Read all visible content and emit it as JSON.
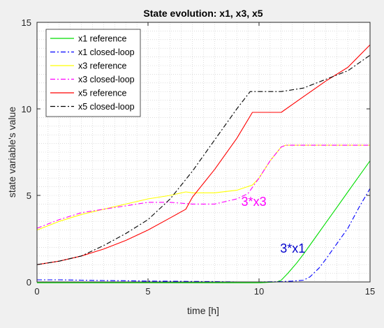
{
  "chart_data": {
    "type": "line",
    "title": "State evolution: x1, x3, x5",
    "xlabel": "time [h]",
    "ylabel": "state variable's value",
    "xlim": [
      0,
      15
    ],
    "ylim": [
      0,
      15
    ],
    "xticks": [
      0,
      5,
      10,
      15
    ],
    "yticks": [
      0,
      5,
      10,
      15
    ],
    "grid": "minor dotted",
    "legend_position": "top-left",
    "series": [
      {
        "name": "x1 reference",
        "color": "#00dd00",
        "style": "solid",
        "x": [
          0,
          1,
          2,
          3,
          4,
          5,
          6,
          7,
          8,
          9,
          10,
          10.8,
          11,
          11.3,
          11.7,
          12,
          12.5,
          13,
          13.5,
          14,
          14.5,
          15
        ],
        "y": [
          -0.05,
          -0.05,
          -0.05,
          -0.05,
          -0.05,
          -0.05,
          -0.05,
          -0.05,
          -0.05,
          -0.05,
          -0.05,
          0.0,
          0.1,
          0.5,
          1.1,
          1.6,
          2.5,
          3.4,
          4.3,
          5.2,
          6.1,
          7.0
        ]
      },
      {
        "name": "x1 closed-loop",
        "color": "#0000ff",
        "style": "dashdot",
        "x": [
          0,
          1,
          2,
          3,
          4,
          5,
          6,
          7,
          8,
          9,
          10,
          11,
          11.5,
          12,
          12.3,
          12.7,
          13,
          13.5,
          14,
          14.5,
          15
        ],
        "y": [
          0.12,
          0.12,
          0.1,
          0.08,
          0.07,
          0.05,
          0.04,
          0.03,
          0.02,
          0.0,
          0.0,
          0.02,
          0.05,
          0.1,
          0.3,
          0.8,
          1.3,
          2.2,
          3.1,
          4.3,
          5.4
        ]
      },
      {
        "name": "x3 reference",
        "color": "#ffff00",
        "style": "solid",
        "x": [
          0,
          1,
          2,
          3,
          4,
          5,
          6,
          6.7,
          7,
          8,
          9,
          9.7,
          10,
          10.5,
          11,
          11.2,
          12,
          13,
          14,
          15
        ],
        "y": [
          3.0,
          3.5,
          3.9,
          4.2,
          4.5,
          4.8,
          5.0,
          5.2,
          5.15,
          5.15,
          5.3,
          5.6,
          6.0,
          7.0,
          7.8,
          7.9,
          7.9,
          7.9,
          7.9,
          7.9
        ]
      },
      {
        "name": "x3 closed-loop",
        "color": "#ff00ff",
        "style": "dashdot",
        "x": [
          0,
          1,
          2,
          3,
          4,
          5,
          6,
          7,
          8,
          9,
          9.5,
          10,
          10.5,
          11,
          11.2,
          12,
          13,
          14,
          15
        ],
        "y": [
          3.1,
          3.6,
          4.0,
          4.2,
          4.4,
          4.6,
          4.6,
          4.5,
          4.5,
          4.8,
          5.1,
          6.0,
          7.0,
          7.8,
          7.9,
          7.9,
          7.9,
          7.9,
          7.9
        ]
      },
      {
        "name": "x5 reference",
        "color": "#ff0000",
        "style": "solid",
        "x": [
          0,
          1,
          2,
          3,
          4,
          5,
          6,
          6.7,
          7,
          8,
          9,
          9.7,
          10,
          11,
          12,
          13,
          14,
          15
        ],
        "y": [
          1.0,
          1.2,
          1.5,
          1.9,
          2.4,
          3.0,
          3.7,
          4.2,
          4.9,
          6.5,
          8.3,
          9.8,
          9.8,
          9.8,
          10.7,
          11.6,
          12.4,
          13.7
        ]
      },
      {
        "name": "x5 closed-loop",
        "color": "#000000",
        "style": "dashdot",
        "x": [
          0,
          1,
          2,
          3,
          4,
          5,
          6,
          7,
          8,
          9,
          9.6,
          10,
          11,
          12,
          13,
          14,
          15
        ],
        "y": [
          1.0,
          1.2,
          1.5,
          2.1,
          2.8,
          3.6,
          4.8,
          6.4,
          8.2,
          10.0,
          11.0,
          11.0,
          11.0,
          11.2,
          11.7,
          12.2,
          13.1
        ]
      }
    ],
    "annotations": [
      {
        "text": "3*x3",
        "x": 9.2,
        "y": 4.4,
        "color": "#ff00ff"
      },
      {
        "text": "3*x1",
        "x": 10.95,
        "y": 1.7,
        "color": "#0000cc"
      }
    ]
  }
}
